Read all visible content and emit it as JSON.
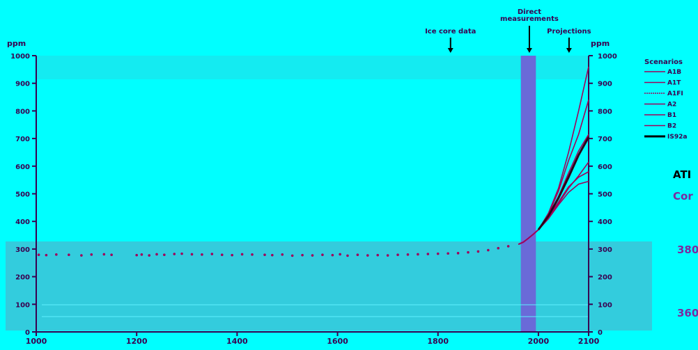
{
  "chart_data": {
    "type": "line",
    "title": "",
    "xlabel": "",
    "ylabel": "ppm",
    "ylabel_right": "ppm",
    "xlim": [
      1000,
      2100
    ],
    "ylim": [
      0,
      1000
    ],
    "x_ticks": [
      1000,
      1200,
      1400,
      1600,
      1800,
      2000,
      2100
    ],
    "y_ticks": [
      0,
      100,
      200,
      300,
      400,
      500,
      600,
      700,
      800,
      900,
      1000
    ],
    "annotations": [
      "Ice core data",
      "Direct measurements",
      "Projections"
    ],
    "legend_title": "Scenarios",
    "legend_position": "right",
    "grid": false,
    "ice_core": {
      "x": [
        1005,
        1020,
        1040,
        1065,
        1090,
        1110,
        1135,
        1150,
        1200,
        1210,
        1225,
        1240,
        1255,
        1275,
        1290,
        1310,
        1330,
        1350,
        1370,
        1390,
        1410,
        1430,
        1455,
        1470,
        1490,
        1510,
        1530,
        1550,
        1570,
        1590,
        1605,
        1620,
        1640,
        1660,
        1680,
        1700,
        1720,
        1740,
        1760,
        1780,
        1800,
        1820,
        1840,
        1860,
        1880,
        1900,
        1920,
        1940
      ],
      "y": [
        279,
        278,
        280,
        279,
        277,
        280,
        281,
        279,
        278,
        280,
        277,
        281,
        279,
        282,
        283,
        281,
        280,
        282,
        279,
        278,
        281,
        280,
        279,
        278,
        280,
        276,
        278,
        277,
        279,
        278,
        281,
        276,
        279,
        277,
        278,
        277,
        279,
        280,
        281,
        282,
        283,
        284,
        285,
        288,
        291,
        296,
        303,
        310
      ]
    },
    "measured": {
      "x": [
        1960,
        1970,
        1980,
        1990,
        2000
      ],
      "y": [
        317,
        325,
        339,
        354,
        370
      ]
    },
    "series": [
      {
        "name": "A1B",
        "x": [
          2000,
          2020,
          2040,
          2060,
          2080,
          2100
        ],
        "y": [
          370,
          420,
          490,
          575,
          655,
          715
        ]
      },
      {
        "name": "A1T",
        "x": [
          2000,
          2020,
          2040,
          2060,
          2080,
          2100
        ],
        "y": [
          370,
          415,
          470,
          525,
          560,
          580
        ]
      },
      {
        "name": "A1FI",
        "x": [
          2000,
          2020,
          2040,
          2060,
          2080,
          2100
        ],
        "y": [
          370,
          430,
          520,
          650,
          800,
          960
        ]
      },
      {
        "name": "A2",
        "x": [
          2000,
          2020,
          2040,
          2060,
          2080,
          2100
        ],
        "y": [
          370,
          425,
          510,
          620,
          715,
          840
        ]
      },
      {
        "name": "B1",
        "x": [
          2000,
          2020,
          2040,
          2060,
          2080,
          2100
        ],
        "y": [
          370,
          410,
          460,
          505,
          535,
          545
        ]
      },
      {
        "name": "B2",
        "x": [
          2000,
          2020,
          2040,
          2060,
          2080,
          2100
        ],
        "y": [
          370,
          410,
          465,
          520,
          565,
          615
        ]
      },
      {
        "name": "IS92a",
        "x": [
          2000,
          2020,
          2040,
          2060,
          2080,
          2100
        ],
        "y": [
          370,
          420,
          485,
          560,
          640,
          705
        ]
      }
    ]
  },
  "side_text": [
    "ATI",
    "Cor",
    "380",
    "360"
  ],
  "colors": {
    "background": "#00ffff",
    "shaded_band": "#33ccdd",
    "measured_band": "#6a6ad8",
    "series_color": "#a0005a",
    "legend_thick": "#000000",
    "text": "#3a0050"
  }
}
